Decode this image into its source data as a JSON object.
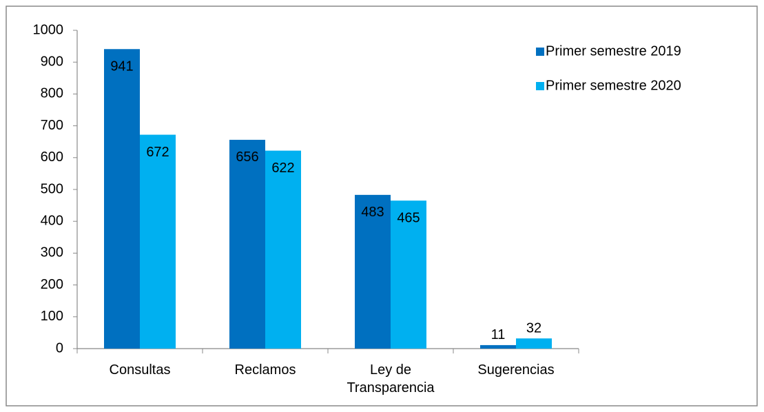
{
  "chart_data": {
    "type": "bar",
    "categories": [
      "Consultas",
      "Reclamos",
      "Ley de Transparencia",
      "Sugerencias"
    ],
    "series": [
      {
        "name": "Primer semestre 2019",
        "color": "#0070c0",
        "label_color": "#ffffff",
        "values": [
          941,
          656,
          483,
          11
        ]
      },
      {
        "name": "Primer semestre 2020",
        "color": "#00b0f0",
        "label_color": "#000000",
        "values": [
          672,
          622,
          465,
          32
        ]
      }
    ],
    "ylim": [
      0,
      1000
    ],
    "yticks": [
      0,
      100,
      200,
      300,
      400,
      500,
      600,
      700,
      800,
      900,
      1000
    ],
    "grid": false,
    "legend": "top-right"
  }
}
